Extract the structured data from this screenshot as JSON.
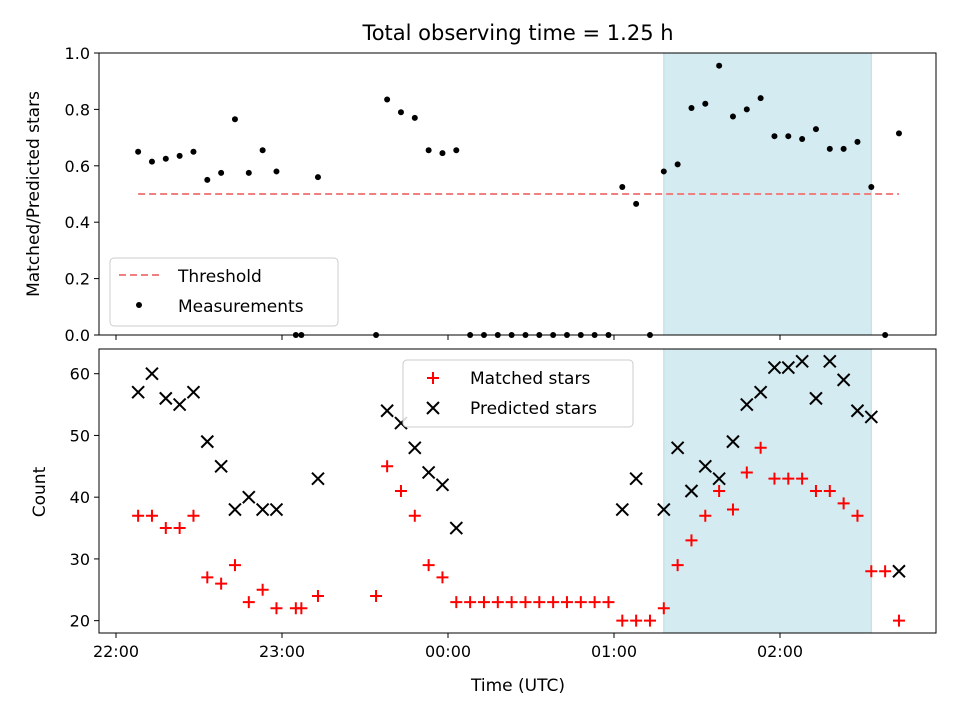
{
  "chart_data": {
    "title": "Total observing time = 1.25 h",
    "xlabel": "Time (UTC)",
    "x_tick_labels": [
      "22:00",
      "23:00",
      "00:00",
      "01:00",
      "02:00"
    ],
    "shaded_interval": [
      "01:18",
      "02:33"
    ],
    "shade_color": "#d4ebf1",
    "panels": [
      {
        "type": "scatter",
        "ylabel": "Matched/Predicted stars",
        "ylim": [
          0.0,
          1.0
        ],
        "y_tick_labels": [
          "0.0",
          "0.2",
          "0.4",
          "0.6",
          "0.8",
          "1.0"
        ],
        "legend_position": "lower-left",
        "threshold": {
          "name": "Threshold",
          "value": 0.5,
          "x_range": [
            "22:08",
            "02:43"
          ],
          "color": "#f08080"
        },
        "series": [
          {
            "name": "Measurements",
            "color": "#000000",
            "points": [
              [
                "22:08",
                0.65
              ],
              [
                "22:13",
                0.615
              ],
              [
                "22:18",
                0.625
              ],
              [
                "22:23",
                0.635
              ],
              [
                "22:28",
                0.65
              ],
              [
                "22:33",
                0.55
              ],
              [
                "22:38",
                0.575
              ],
              [
                "22:43",
                0.765
              ],
              [
                "22:48",
                0.575
              ],
              [
                "22:53",
                0.655
              ],
              [
                "22:58",
                0.58
              ],
              [
                "23:05",
                0.0
              ],
              [
                "23:07",
                0.0
              ],
              [
                "23:13",
                0.56
              ],
              [
                "23:34",
                0.0
              ],
              [
                "23:38",
                0.835
              ],
              [
                "23:43",
                0.79
              ],
              [
                "23:48",
                0.77
              ],
              [
                "23:53",
                0.655
              ],
              [
                "23:58",
                0.645
              ],
              [
                "00:03",
                0.655
              ],
              [
                "00:08",
                0.0
              ],
              [
                "00:13",
                0.0
              ],
              [
                "00:18",
                0.0
              ],
              [
                "00:23",
                0.0
              ],
              [
                "00:28",
                0.0
              ],
              [
                "00:33",
                0.0
              ],
              [
                "00:38",
                0.0
              ],
              [
                "00:43",
                0.0
              ],
              [
                "00:48",
                0.0
              ],
              [
                "00:53",
                0.0
              ],
              [
                "00:58",
                0.0
              ],
              [
                "01:03",
                0.525
              ],
              [
                "01:08",
                0.465
              ],
              [
                "01:13",
                0.0
              ],
              [
                "01:18",
                0.58
              ],
              [
                "01:23",
                0.605
              ],
              [
                "01:28",
                0.805
              ],
              [
                "01:33",
                0.82
              ],
              [
                "01:38",
                0.955
              ],
              [
                "01:43",
                0.775
              ],
              [
                "01:48",
                0.8
              ],
              [
                "01:53",
                0.84
              ],
              [
                "01:58",
                0.705
              ],
              [
                "02:03",
                0.705
              ],
              [
                "02:08",
                0.695
              ],
              [
                "02:13",
                0.73
              ],
              [
                "02:18",
                0.66
              ],
              [
                "02:23",
                0.66
              ],
              [
                "02:28",
                0.685
              ],
              [
                "02:33",
                0.525
              ],
              [
                "02:38",
                0.0
              ],
              [
                "02:43",
                0.715
              ]
            ]
          }
        ]
      },
      {
        "type": "scatter",
        "ylabel": "Count",
        "ylim": [
          18,
          64
        ],
        "y_tick_labels": [
          "20",
          "30",
          "40",
          "50",
          "60"
        ],
        "legend_position": "upper-center",
        "series": [
          {
            "name": "Matched stars",
            "marker": "+",
            "color": "#ff0000",
            "points": [
              [
                "22:08",
                37
              ],
              [
                "22:13",
                37
              ],
              [
                "22:18",
                35
              ],
              [
                "22:23",
                35
              ],
              [
                "22:28",
                37
              ],
              [
                "22:33",
                27
              ],
              [
                "22:38",
                26
              ],
              [
                "22:43",
                29
              ],
              [
                "22:48",
                23
              ],
              [
                "22:53",
                25
              ],
              [
                "22:58",
                22
              ],
              [
                "23:05",
                22
              ],
              [
                "23:07",
                22
              ],
              [
                "23:13",
                24
              ],
              [
                "23:34",
                24
              ],
              [
                "23:38",
                45
              ],
              [
                "23:43",
                41
              ],
              [
                "23:48",
                37
              ],
              [
                "23:53",
                29
              ],
              [
                "23:58",
                27
              ],
              [
                "00:03",
                23
              ],
              [
                "00:08",
                23
              ],
              [
                "00:13",
                23
              ],
              [
                "00:18",
                23
              ],
              [
                "00:23",
                23
              ],
              [
                "00:28",
                23
              ],
              [
                "00:33",
                23
              ],
              [
                "00:38",
                23
              ],
              [
                "00:43",
                23
              ],
              [
                "00:48",
                23
              ],
              [
                "00:53",
                23
              ],
              [
                "00:58",
                23
              ],
              [
                "01:03",
                20
              ],
              [
                "01:08",
                20
              ],
              [
                "01:13",
                20
              ],
              [
                "01:18",
                22
              ],
              [
                "01:23",
                29
              ],
              [
                "01:28",
                33
              ],
              [
                "01:33",
                37
              ],
              [
                "01:38",
                41
              ],
              [
                "01:43",
                38
              ],
              [
                "01:48",
                44
              ],
              [
                "01:53",
                48
              ],
              [
                "01:58",
                43
              ],
              [
                "02:03",
                43
              ],
              [
                "02:08",
                43
              ],
              [
                "02:13",
                41
              ],
              [
                "02:18",
                41
              ],
              [
                "02:23",
                39
              ],
              [
                "02:28",
                37
              ],
              [
                "02:33",
                28
              ],
              [
                "02:38",
                28
              ],
              [
                "02:43",
                20
              ]
            ]
          },
          {
            "name": "Predicted stars",
            "marker": "x",
            "color": "#000000",
            "points": [
              [
                "22:08",
                57
              ],
              [
                "22:13",
                60
              ],
              [
                "22:18",
                56
              ],
              [
                "22:23",
                55
              ],
              [
                "22:28",
                57
              ],
              [
                "22:33",
                49
              ],
              [
                "22:38",
                45
              ],
              [
                "22:43",
                38
              ],
              [
                "22:48",
                40
              ],
              [
                "22:53",
                38
              ],
              [
                "22:58",
                38
              ],
              [
                "23:13",
                43
              ],
              [
                "23:38",
                54
              ],
              [
                "23:43",
                52
              ],
              [
                "23:48",
                48
              ],
              [
                "23:53",
                44
              ],
              [
                "23:58",
                42
              ],
              [
                "00:03",
                35
              ],
              [
                "01:03",
                38
              ],
              [
                "01:08",
                43
              ],
              [
                "01:18",
                38
              ],
              [
                "01:23",
                48
              ],
              [
                "01:28",
                41
              ],
              [
                "01:33",
                45
              ],
              [
                "01:38",
                43
              ],
              [
                "01:43",
                49
              ],
              [
                "01:48",
                55
              ],
              [
                "01:53",
                57
              ],
              [
                "01:58",
                61
              ],
              [
                "02:03",
                61
              ],
              [
                "02:08",
                62
              ],
              [
                "02:13",
                56
              ],
              [
                "02:18",
                62
              ],
              [
                "02:23",
                59
              ],
              [
                "02:28",
                54
              ],
              [
                "02:33",
                53
              ],
              [
                "02:43",
                28
              ]
            ]
          }
        ]
      }
    ]
  }
}
